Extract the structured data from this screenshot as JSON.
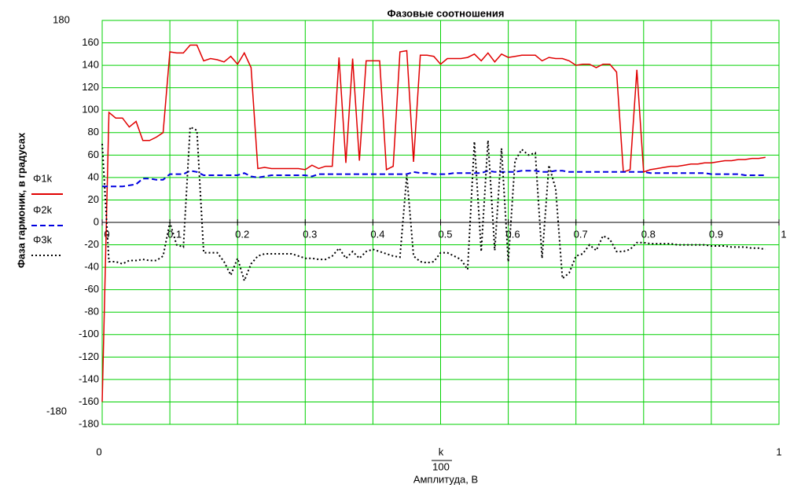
{
  "chart_data": {
    "type": "line",
    "title": "Фазовые соотношения",
    "y_label": "Фаза гармоник, в градусах",
    "x_expression": {
      "numerator": "k",
      "denominator": "100"
    },
    "x_label": "Амплитуда, В",
    "xlim": [
      0,
      1
    ],
    "ylim": [
      -180,
      180
    ],
    "xticks": [
      0,
      0.1,
      0.2,
      0.3,
      0.4,
      0.5,
      0.6,
      0.7,
      0.8,
      0.9,
      1
    ],
    "yticks": [
      -180,
      -160,
      -140,
      -120,
      -100,
      -80,
      -60,
      -40,
      -20,
      0,
      20,
      40,
      60,
      80,
      100,
      120,
      140,
      160
    ],
    "grid": true,
    "grid_color": "#00d000",
    "legend": "left",
    "x": [
      0,
      0.01,
      0.02,
      0.03,
      0.04,
      0.05,
      0.06,
      0.07,
      0.08,
      0.09,
      0.1,
      0.11,
      0.12,
      0.13,
      0.14,
      0.15,
      0.16,
      0.17,
      0.18,
      0.19,
      0.2,
      0.21,
      0.22,
      0.23,
      0.24,
      0.25,
      0.26,
      0.27,
      0.28,
      0.29,
      0.3,
      0.31,
      0.32,
      0.33,
      0.34,
      0.35,
      0.36,
      0.37,
      0.38,
      0.39,
      0.4,
      0.41,
      0.42,
      0.43,
      0.44,
      0.45,
      0.46,
      0.47,
      0.48,
      0.49,
      0.5,
      0.51,
      0.52,
      0.53,
      0.54,
      0.55,
      0.56,
      0.57,
      0.58,
      0.59,
      0.6,
      0.61,
      0.62,
      0.63,
      0.64,
      0.65,
      0.66,
      0.67,
      0.68,
      0.69,
      0.7,
      0.71,
      0.72,
      0.73,
      0.74,
      0.75,
      0.76,
      0.77,
      0.78,
      0.79,
      0.8,
      0.81,
      0.82,
      0.83,
      0.84,
      0.85,
      0.86,
      0.87,
      0.88,
      0.89,
      0.9,
      0.91,
      0.92,
      0.93,
      0.94,
      0.95,
      0.96,
      0.97,
      0.98
    ],
    "series": [
      {
        "name": "Φ1k",
        "color": "#e00000",
        "dash": "none",
        "values": [
          -160,
          98,
          93,
          93,
          85,
          90,
          73,
          73,
          76,
          80,
          152,
          151,
          151,
          158,
          158,
          144,
          146,
          145,
          143,
          148,
          141,
          151,
          138,
          48,
          49,
          48,
          48,
          48,
          48,
          48,
          47,
          51,
          48,
          50,
          50,
          147,
          53,
          146,
          55,
          144,
          144,
          144,
          47,
          50,
          152,
          153,
          54,
          149,
          149,
          148,
          141,
          146,
          146,
          146,
          147,
          150,
          144,
          151,
          143,
          150,
          147,
          148,
          149,
          149,
          149,
          144,
          147,
          146,
          146,
          144,
          140,
          141,
          141,
          138,
          141,
          141,
          134,
          45,
          47,
          136,
          45,
          47,
          48,
          49,
          50,
          50,
          51,
          52,
          52,
          53,
          53,
          54,
          55,
          55,
          56,
          56,
          57,
          57,
          58
        ]
      },
      {
        "name": "Φ2k",
        "color": "#0000e0",
        "dash": "7,4",
        "values": [
          32,
          32,
          32,
          32,
          33,
          34,
          39,
          39,
          38,
          38,
          43,
          43,
          43,
          46,
          45,
          42,
          42,
          42,
          42,
          42,
          42,
          44,
          41,
          40,
          41,
          42,
          42,
          42,
          42,
          42,
          42,
          41,
          43,
          43,
          43,
          43,
          43,
          43,
          43,
          43,
          43,
          43,
          43,
          43,
          43,
          43,
          45,
          44,
          44,
          43,
          43,
          43,
          44,
          44,
          44,
          44,
          44,
          46,
          45,
          45,
          45,
          45,
          46,
          46,
          46,
          45,
          45,
          46,
          46,
          45,
          45,
          45,
          45,
          45,
          45,
          45,
          45,
          45,
          45,
          45,
          45,
          44,
          44,
          44,
          44,
          44,
          44,
          44,
          44,
          44,
          43,
          43,
          43,
          43,
          43,
          42,
          42,
          42,
          42
        ]
      },
      {
        "name": "Φ3k",
        "color": "#000000",
        "dash": "2,3",
        "values": [
          70,
          -35,
          -35,
          -37,
          -34,
          -34,
          -33,
          -34,
          -34,
          -30,
          0,
          -20,
          -22,
          85,
          82,
          -27,
          -27,
          -27,
          -35,
          -47,
          -32,
          -52,
          -37,
          -30,
          -28,
          -28,
          -28,
          -28,
          -28,
          -30,
          -32,
          -32,
          -33,
          -33,
          -30,
          -23,
          -32,
          -26,
          -32,
          -26,
          -24,
          -26,
          -28,
          -30,
          -31,
          42,
          -30,
          -35,
          -36,
          -35,
          -27,
          -27,
          -30,
          -33,
          -42,
          72,
          -26,
          73,
          -25,
          66,
          -35,
          55,
          65,
          60,
          62,
          -32,
          51,
          30,
          -50,
          -45,
          -30,
          -28,
          -20,
          -25,
          -12,
          -15,
          -26,
          -26,
          -24,
          -18,
          -18,
          -19,
          -19,
          -19,
          -19,
          -20,
          -20,
          -20,
          -20,
          -20,
          -21,
          -21,
          -21,
          -22,
          -22,
          -22,
          -23,
          -23,
          -24
        ]
      }
    ]
  }
}
